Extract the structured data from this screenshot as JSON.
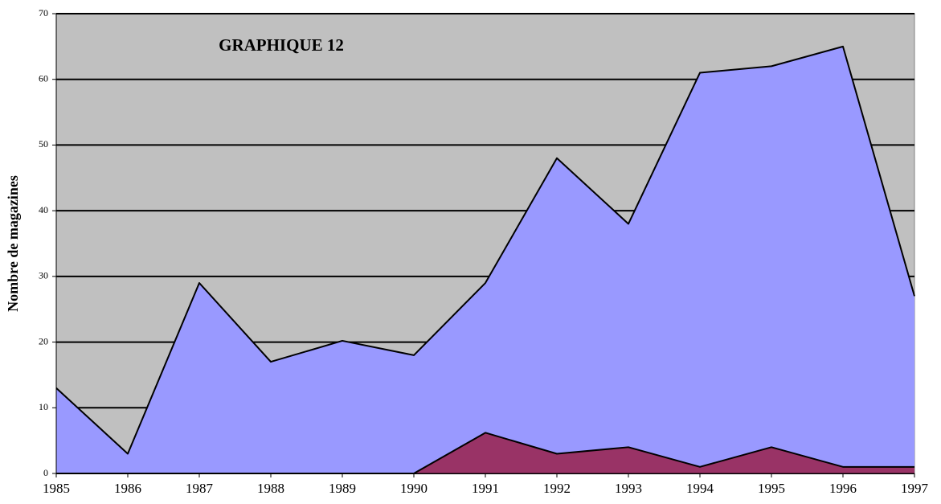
{
  "chart_data": {
    "type": "area",
    "title": "GRAPHIQUE 12",
    "y_label": "Nombre de magazines",
    "x": [
      1985,
      1986,
      1987,
      1988,
      1989,
      1990,
      1991,
      1992,
      1993,
      1994,
      1995,
      1996,
      1997
    ],
    "series": [
      {
        "color": "#9999ff",
        "values": [
          13,
          3,
          29,
          17,
          20.2,
          18,
          29,
          48,
          38,
          61,
          62,
          65,
          27
        ]
      },
      {
        "color": "#993366",
        "values": [
          0,
          0,
          0,
          0,
          0,
          0,
          6.2,
          3,
          4,
          1,
          4,
          1,
          1
        ]
      }
    ],
    "xlim": [
      1985,
      1997
    ],
    "xticks": [
      1985,
      1986,
      1987,
      1988,
      1989,
      1990,
      1991,
      1992,
      1993,
      1994,
      1995,
      1996,
      1997
    ],
    "ylim": [
      0,
      70
    ],
    "yticks": [
      0,
      10,
      20,
      30,
      40,
      50,
      60,
      70
    ],
    "grid": true,
    "plot_background": "#c0c0c0"
  }
}
